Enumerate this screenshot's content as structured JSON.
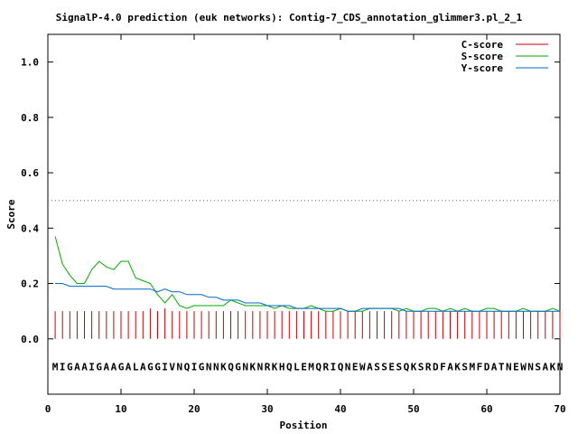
{
  "chart_data": {
    "type": "line",
    "title": "SignalP-4.0 prediction (euk networks): Contig-7_CDS_annotation_glimmer3.pl_2_1",
    "xlabel": "Position",
    "ylabel": "Score",
    "xlim": [
      0,
      70
    ],
    "ylim": [
      -0.2,
      1.1
    ],
    "x_ticks": [
      "0",
      "10",
      "20",
      "30",
      "40",
      "50",
      "60",
      "70"
    ],
    "y_ticks": [
      "0.0",
      "0.2",
      "0.4",
      "0.6",
      "0.8",
      "1.0"
    ],
    "threshold": 0.5,
    "sequence": "MIGAAIGAAGALAGGIVNQIGNNKQGNKNRKHQLEMQRIQNEWASSESQKSRDFAKSMFDATNEWNSAKN",
    "legend_position": "top-right",
    "series": [
      {
        "name": "C-score",
        "type": "impulse",
        "color": "#cc0000",
        "values": [
          0.1,
          0.1,
          0.1,
          0.1,
          0.1,
          0.1,
          0.1,
          0.1,
          0.1,
          0.1,
          0.1,
          0.1,
          0.1,
          0.11,
          0.1,
          0.11,
          0.1,
          0.1,
          0.1,
          0.1,
          0.1,
          0.1,
          0.1,
          0.1,
          0.1,
          0.1,
          0.1,
          0.1,
          0.1,
          0.1,
          0.1,
          0.1,
          0.1,
          0.1,
          0.1,
          0.1,
          0.1,
          0.1,
          0.1,
          0.1,
          0.1,
          0.1,
          0.1,
          0.1,
          0.1,
          0.1,
          0.1,
          0.1,
          0.1,
          0.1,
          0.1,
          0.1,
          0.1,
          0.1,
          0.1,
          0.1,
          0.1,
          0.1,
          0.1,
          0.1,
          0.1,
          0.1,
          0.1,
          0.1,
          0.1,
          0.1,
          0.1,
          0.1,
          0.1,
          0.1
        ]
      },
      {
        "name": "S-score",
        "type": "line",
        "color": "#00aa00",
        "values": [
          0.37,
          0.27,
          0.23,
          0.2,
          0.2,
          0.25,
          0.28,
          0.26,
          0.25,
          0.28,
          0.28,
          0.22,
          0.21,
          0.2,
          0.16,
          0.13,
          0.16,
          0.12,
          0.11,
          0.12,
          0.12,
          0.12,
          0.12,
          0.12,
          0.14,
          0.13,
          0.12,
          0.12,
          0.12,
          0.12,
          0.11,
          0.12,
          0.11,
          0.11,
          0.11,
          0.12,
          0.11,
          0.1,
          0.1,
          0.11,
          0.1,
          0.1,
          0.1,
          0.11,
          0.11,
          0.11,
          0.11,
          0.1,
          0.11,
          0.1,
          0.1,
          0.11,
          0.11,
          0.1,
          0.11,
          0.1,
          0.11,
          0.1,
          0.1,
          0.11,
          0.11,
          0.1,
          0.1,
          0.1,
          0.11,
          0.1,
          0.1,
          0.1,
          0.11,
          0.1
        ]
      },
      {
        "name": "Y-score",
        "type": "line",
        "color": "#0066cc",
        "values": [
          0.2,
          0.2,
          0.19,
          0.19,
          0.19,
          0.19,
          0.19,
          0.19,
          0.18,
          0.18,
          0.18,
          0.18,
          0.18,
          0.18,
          0.17,
          0.18,
          0.17,
          0.17,
          0.16,
          0.16,
          0.16,
          0.15,
          0.15,
          0.14,
          0.14,
          0.14,
          0.13,
          0.13,
          0.13,
          0.12,
          0.12,
          0.12,
          0.12,
          0.11,
          0.11,
          0.11,
          0.11,
          0.11,
          0.11,
          0.11,
          0.1,
          0.1,
          0.11,
          0.11,
          0.11,
          0.11,
          0.11,
          0.11,
          0.1,
          0.1,
          0.1,
          0.1,
          0.1,
          0.1,
          0.1,
          0.1,
          0.1,
          0.1,
          0.1,
          0.1,
          0.1,
          0.1,
          0.1,
          0.1,
          0.1,
          0.1,
          0.1,
          0.1,
          0.1,
          0.1
        ]
      }
    ],
    "threshold_color": "#ff00ff",
    "grid": false
  }
}
